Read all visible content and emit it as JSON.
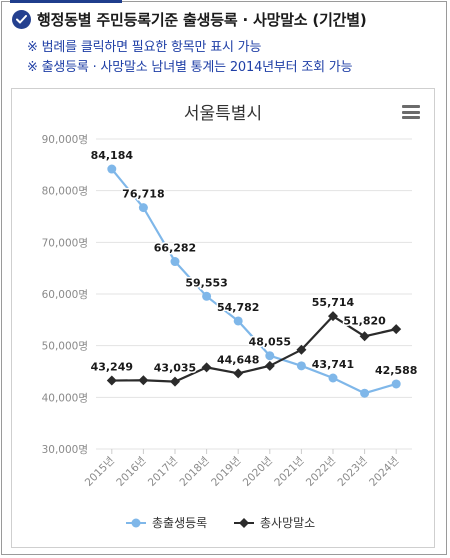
{
  "header": {
    "title": "행정동별 주민등록기준 출생등록 · 사망말소 (기간별)"
  },
  "notes": [
    "※ 범례를 클릭하면 필요한 항목만 표시 가능",
    "※ 출생등록 · 사망말소 남녀별 통계는 2014년부터 조회 가능"
  ],
  "colors": {
    "accent": "#24408f",
    "note_text": "#1f3fa6",
    "births": "#7fb7e9",
    "deaths": "#2b2b2b"
  },
  "icons": {
    "menu": "hamburger-menu-icon",
    "header": "check-circle-icon"
  },
  "chart_data": {
    "type": "line",
    "title": "서울특별시",
    "xlabel": "",
    "ylabel": "",
    "categories": [
      "2015년",
      "2016년",
      "2017년",
      "2018년",
      "2019년",
      "2020년",
      "2021년",
      "2022년",
      "2023년",
      "2024년"
    ],
    "y_tick_labels": [
      "30,000명",
      "40,000명",
      "50,000명",
      "60,000명",
      "70,000명",
      "80,000명",
      "90,000명"
    ],
    "y_ticks": [
      30000,
      40000,
      50000,
      60000,
      70000,
      80000,
      90000
    ],
    "ylim": [
      30000,
      90000
    ],
    "grid": true,
    "legend_position": "bottom",
    "series": [
      {
        "name": "총출생등록",
        "color": "#7fb7e9",
        "marker": "circle",
        "values": [
          84184,
          76718,
          66282,
          59553,
          54782,
          48055,
          46100,
          43741,
          40800,
          42588
        ],
        "labels": [
          "84,184",
          "76,718",
          "66,282",
          "59,553",
          "54,782",
          "48,055",
          "",
          "43,741",
          "",
          "42,588"
        ]
      },
      {
        "name": "총사망말소",
        "color": "#2b2b2b",
        "marker": "diamond",
        "values": [
          43249,
          43300,
          43035,
          45800,
          44648,
          46100,
          49200,
          55714,
          51820,
          53200
        ],
        "labels": [
          "43,249",
          "",
          "43,035",
          "",
          "44,648",
          "",
          "",
          "55,714",
          "51,820",
          ""
        ]
      }
    ]
  }
}
